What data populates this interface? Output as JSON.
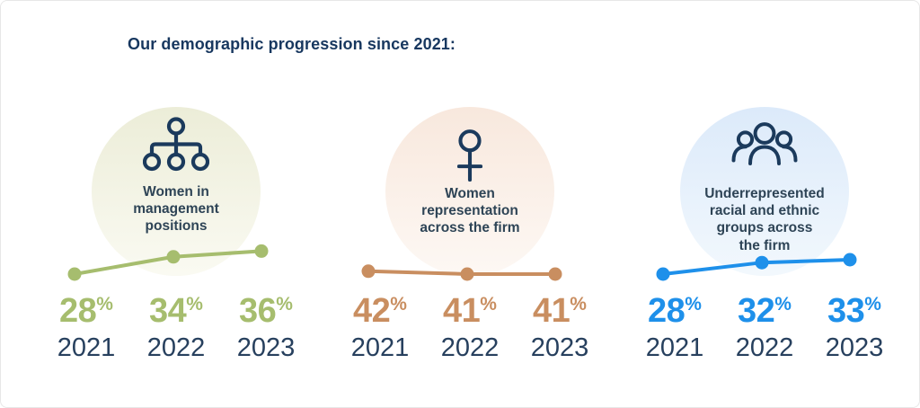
{
  "title": "Our demographic progression since 2021:",
  "colors": {
    "navy_heading": "#17375f",
    "navy_text": "#27405e",
    "label_text": "#2e4456",
    "icon_stroke": "#1b3a5c",
    "background": "#ffffff",
    "border": "#e7e7e7"
  },
  "chart_data": [
    {
      "type": "line",
      "title": "Women in management positions",
      "label_lines": [
        "Women in",
        "management",
        "positions"
      ],
      "icon": "org-chart-icon",
      "categories": [
        "2021",
        "2022",
        "2023"
      ],
      "values": [
        28,
        34,
        36
      ],
      "unit": "%",
      "color": "#a6bd6e",
      "circle_top": "#ecedd8",
      "circle_bottom": "#fafaf2"
    },
    {
      "type": "line",
      "title": "Women representation across the firm",
      "label_lines": [
        "Women",
        "representation",
        "across the firm"
      ],
      "icon": "female-icon",
      "categories": [
        "2021",
        "2022",
        "2023"
      ],
      "values": [
        42,
        41,
        41
      ],
      "unit": "%",
      "color": "#c98e60",
      "circle_top": "#f8e8dd",
      "circle_bottom": "#fdf8f4"
    },
    {
      "type": "line",
      "title": "Underrepresented racial and ethnic groups across the firm",
      "label_lines": [
        "Underrepresented",
        "racial and ethnic",
        "groups across",
        "the firm"
      ],
      "icon": "people-group-icon",
      "categories": [
        "2021",
        "2022",
        "2023"
      ],
      "values": [
        28,
        32,
        33
      ],
      "unit": "%",
      "color": "#1e90ea",
      "circle_top": "#dceafa",
      "circle_bottom": "#f2f8fd"
    }
  ]
}
